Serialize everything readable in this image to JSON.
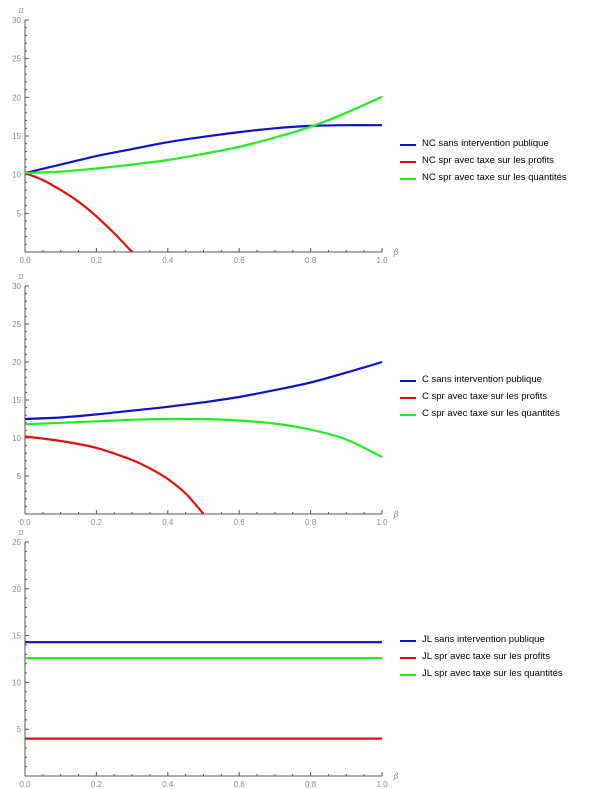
{
  "chart_data": [
    {
      "type": "line",
      "xlabel": "β",
      "ylabel": "π",
      "xlim": [
        0,
        1
      ],
      "ylim": [
        0,
        30
      ],
      "xticks": [
        "0.0",
        "0.2",
        "0.4",
        "0.6",
        "0.8",
        "1.0"
      ],
      "yticks": [
        "5",
        "10",
        "15",
        "20",
        "25",
        "30"
      ],
      "xtick_values": [
        0,
        0.2,
        0.4,
        0.6,
        0.8,
        1.0
      ],
      "ytick_values": [
        5,
        10,
        15,
        20,
        25,
        30
      ],
      "legend_position": "right",
      "series": [
        {
          "name": "NC sans intervention publique",
          "color": "#1010c8",
          "x": [
            0,
            0.1,
            0.2,
            0.3,
            0.4,
            0.5,
            0.6,
            0.7,
            0.8,
            0.9,
            1.0
          ],
          "y": [
            10.2,
            11.3,
            12.4,
            13.3,
            14.2,
            14.9,
            15.5,
            16.0,
            16.3,
            16.4,
            16.4
          ]
        },
        {
          "name": "NC spr avec taxe sur les profits",
          "color": "#e01010",
          "x": [
            0,
            0.05,
            0.1,
            0.15,
            0.2,
            0.25,
            0.3
          ],
          "y": [
            10.2,
            9.3,
            8.0,
            6.5,
            4.6,
            2.4,
            0
          ]
        },
        {
          "name": "NC spr avec taxe sur les quantités",
          "color": "#22ee22",
          "x": [
            0,
            0.1,
            0.2,
            0.3,
            0.4,
            0.5,
            0.6,
            0.7,
            0.8,
            0.9,
            1.0
          ],
          "y": [
            10.2,
            10.4,
            10.8,
            11.3,
            11.9,
            12.7,
            13.6,
            14.8,
            16.2,
            18.0,
            20.1
          ]
        }
      ]
    },
    {
      "type": "line",
      "xlabel": "β",
      "ylabel": "π",
      "xlim": [
        0,
        1
      ],
      "ylim": [
        0,
        30
      ],
      "xticks": [
        "0.0",
        "0.2",
        "0.4",
        "0.6",
        "0.8",
        "1.0"
      ],
      "yticks": [
        "5",
        "10",
        "15",
        "20",
        "25",
        "30"
      ],
      "xtick_values": [
        0,
        0.2,
        0.4,
        0.6,
        0.8,
        1.0
      ],
      "ytick_values": [
        5,
        10,
        15,
        20,
        25,
        30
      ],
      "legend_position": "right",
      "series": [
        {
          "name": "C sans intervention publique",
          "color": "#1010c8",
          "x": [
            0,
            0.1,
            0.2,
            0.3,
            0.4,
            0.5,
            0.6,
            0.7,
            0.8,
            0.9,
            1.0
          ],
          "y": [
            12.5,
            12.7,
            13.1,
            13.6,
            14.1,
            14.7,
            15.4,
            16.3,
            17.3,
            18.6,
            20.0
          ]
        },
        {
          "name": "C spr avec taxe sur les profits",
          "color": "#e01010",
          "x": [
            0,
            0.1,
            0.2,
            0.3,
            0.35,
            0.4,
            0.45,
            0.5
          ],
          "y": [
            10.2,
            9.6,
            8.7,
            7.1,
            6.0,
            4.6,
            2.7,
            0
          ]
        },
        {
          "name": "C spr avec taxe sur les quantités",
          "color": "#22ee22",
          "x": [
            0,
            0.1,
            0.2,
            0.3,
            0.4,
            0.5,
            0.6,
            0.7,
            0.8,
            0.9,
            1.0
          ],
          "y": [
            11.8,
            12.0,
            12.2,
            12.4,
            12.5,
            12.5,
            12.3,
            11.9,
            11.1,
            9.8,
            7.5
          ]
        }
      ]
    },
    {
      "type": "line",
      "xlabel": "β",
      "ylabel": "π",
      "xlim": [
        0,
        1
      ],
      "ylim": [
        0,
        25
      ],
      "xticks": [
        "0.0",
        "0.2",
        "0.4",
        "0.6",
        "0.8",
        "1.0"
      ],
      "yticks": [
        "5",
        "10",
        "15",
        "20",
        "25"
      ],
      "xtick_values": [
        0,
        0.2,
        0.4,
        0.6,
        0.8,
        1.0
      ],
      "ytick_values": [
        5,
        10,
        15,
        20,
        25
      ],
      "legend_position": "right",
      "series": [
        {
          "name": "JL sans intervention publique",
          "color": "#1010c8",
          "x": [
            0,
            1.0
          ],
          "y": [
            14.3,
            14.3
          ]
        },
        {
          "name": "JL spr avec taxe sur les profits",
          "color": "#e01010",
          "x": [
            0,
            1.0
          ],
          "y": [
            4.0,
            4.0
          ]
        },
        {
          "name": "JL spr avec taxe sur les quantités",
          "color": "#22ee22",
          "x": [
            0,
            1.0
          ],
          "y": [
            12.6,
            12.6
          ]
        }
      ]
    }
  ]
}
